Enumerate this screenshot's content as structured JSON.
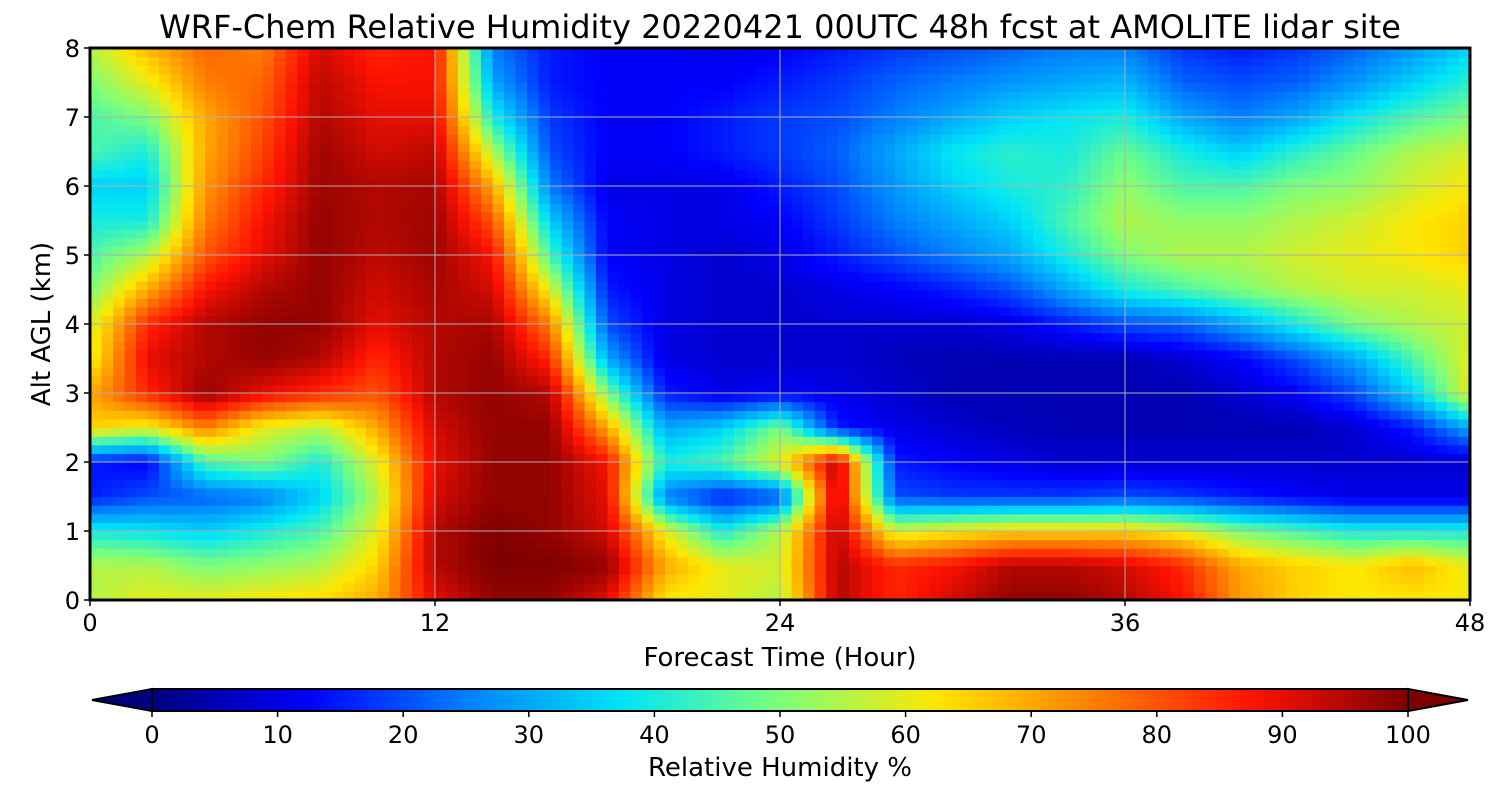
{
  "chart_data": {
    "type": "heatmap",
    "title": "WRF-Chem Relative Humidity 20220421 00UTC 48h fcst at AMOLITE lidar site",
    "xlabel": "Forecast Time (Hour)",
    "ylabel": "Alt AGL (km)",
    "xlim": [
      0,
      48
    ],
    "ylim": [
      0,
      8
    ],
    "x_ticks": [
      "0",
      "12",
      "24",
      "36",
      "48"
    ],
    "y_ticks": [
      "0",
      "1",
      "2",
      "3",
      "4",
      "5",
      "6",
      "7",
      "8"
    ],
    "grid": true,
    "colorbar": {
      "label": "Relative Humidity %",
      "range": [
        0,
        100
      ],
      "ticks": [
        "0",
        "10",
        "20",
        "30",
        "40",
        "50",
        "60",
        "70",
        "80",
        "90",
        "100"
      ],
      "colormap": "jet",
      "extend": "both",
      "colors": [
        "#00007f",
        "#0000ff",
        "#007fff",
        "#00e5f7",
        "#7dff7a",
        "#ffe600",
        "#ff7f00",
        "#ff1200",
        "#7f0000"
      ]
    },
    "x": [
      0,
      2,
      4,
      6,
      8,
      10,
      12,
      14,
      16,
      18,
      20,
      22,
      24,
      26,
      28,
      30,
      32,
      34,
      36,
      38,
      40,
      42,
      44,
      46,
      48
    ],
    "y": [
      0,
      0.5,
      1,
      1.5,
      2,
      2.5,
      3,
      3.5,
      4,
      4.5,
      5,
      5.5,
      6,
      6.5,
      7,
      7.5,
      8
    ],
    "z": [
      [
        55,
        60,
        60,
        62,
        64,
        70,
        90,
        98,
        98,
        90,
        62,
        60,
        55,
        95,
        85,
        92,
        98,
        98,
        95,
        88,
        72,
        65,
        62,
        62,
        62
      ],
      [
        55,
        55,
        50,
        52,
        55,
        65,
        95,
        100,
        100,
        98,
        70,
        60,
        58,
        95,
        85,
        88,
        95,
        95,
        92,
        85,
        70,
        65,
        62,
        68,
        60
      ],
      [
        40,
        38,
        35,
        40,
        45,
        60,
        95,
        100,
        98,
        92,
        60,
        40,
        55,
        95,
        58,
        62,
        65,
        65,
        65,
        60,
        50,
        45,
        40,
        40,
        40
      ],
      [
        15,
        20,
        22,
        25,
        35,
        55,
        92,
        98,
        98,
        90,
        25,
        15,
        20,
        95,
        20,
        18,
        18,
        18,
        20,
        18,
        15,
        12,
        10,
        10,
        10
      ],
      [
        15,
        12,
        45,
        50,
        40,
        60,
        90,
        98,
        98,
        88,
        40,
        45,
        60,
        95,
        15,
        12,
        10,
        8,
        8,
        8,
        8,
        8,
        8,
        8,
        8
      ],
      [
        65,
        60,
        75,
        60,
        55,
        70,
        92,
        98,
        98,
        70,
        30,
        35,
        50,
        15,
        10,
        8,
        6,
        5,
        5,
        5,
        5,
        5,
        8,
        15,
        30
      ],
      [
        70,
        85,
        98,
        90,
        85,
        80,
        95,
        98,
        95,
        50,
        15,
        10,
        12,
        10,
        8,
        5,
        5,
        5,
        5,
        5,
        8,
        12,
        20,
        35,
        60
      ],
      [
        60,
        90,
        95,
        98,
        95,
        85,
        95,
        98,
        85,
        30,
        10,
        8,
        8,
        8,
        6,
        5,
        5,
        5,
        5,
        8,
        12,
        20,
        30,
        45,
        60
      ],
      [
        58,
        85,
        95,
        98,
        98,
        90,
        95,
        96,
        75,
        20,
        10,
        8,
        8,
        8,
        8,
        8,
        10,
        15,
        20,
        22,
        30,
        40,
        50,
        55,
        58
      ],
      [
        50,
        70,
        88,
        95,
        98,
        92,
        96,
        92,
        60,
        15,
        10,
        8,
        8,
        10,
        12,
        15,
        20,
        30,
        40,
        45,
        50,
        55,
        58,
        58,
        60
      ],
      [
        45,
        55,
        80,
        90,
        98,
        94,
        97,
        88,
        45,
        12,
        10,
        8,
        10,
        15,
        20,
        25,
        30,
        40,
        50,
        55,
        55,
        58,
        60,
        62,
        65
      ],
      [
        40,
        40,
        75,
        88,
        98,
        95,
        97,
        80,
        35,
        12,
        10,
        10,
        12,
        18,
        25,
        30,
        35,
        45,
        55,
        52,
        52,
        55,
        58,
        62,
        65
      ],
      [
        35,
        35,
        72,
        85,
        97,
        95,
        96,
        70,
        25,
        10,
        10,
        10,
        15,
        20,
        28,
        35,
        40,
        42,
        52,
        45,
        45,
        50,
        52,
        58,
        62
      ],
      [
        45,
        40,
        70,
        82,
        97,
        92,
        94,
        55,
        20,
        12,
        12,
        15,
        18,
        22,
        30,
        38,
        42,
        40,
        48,
        40,
        35,
        42,
        48,
        55,
        58
      ],
      [
        45,
        50,
        70,
        80,
        95,
        90,
        90,
        40,
        18,
        12,
        12,
        15,
        18,
        20,
        25,
        30,
        35,
        38,
        40,
        30,
        25,
        30,
        38,
        45,
        50
      ],
      [
        50,
        60,
        75,
        78,
        94,
        88,
        88,
        30,
        15,
        12,
        12,
        12,
        15,
        18,
        22,
        25,
        28,
        30,
        32,
        22,
        20,
        22,
        28,
        35,
        42
      ],
      [
        55,
        68,
        78,
        75,
        92,
        85,
        88,
        25,
        15,
        12,
        12,
        10,
        12,
        15,
        18,
        20,
        22,
        25,
        25,
        18,
        15,
        18,
        22,
        28,
        35
      ]
    ]
  }
}
